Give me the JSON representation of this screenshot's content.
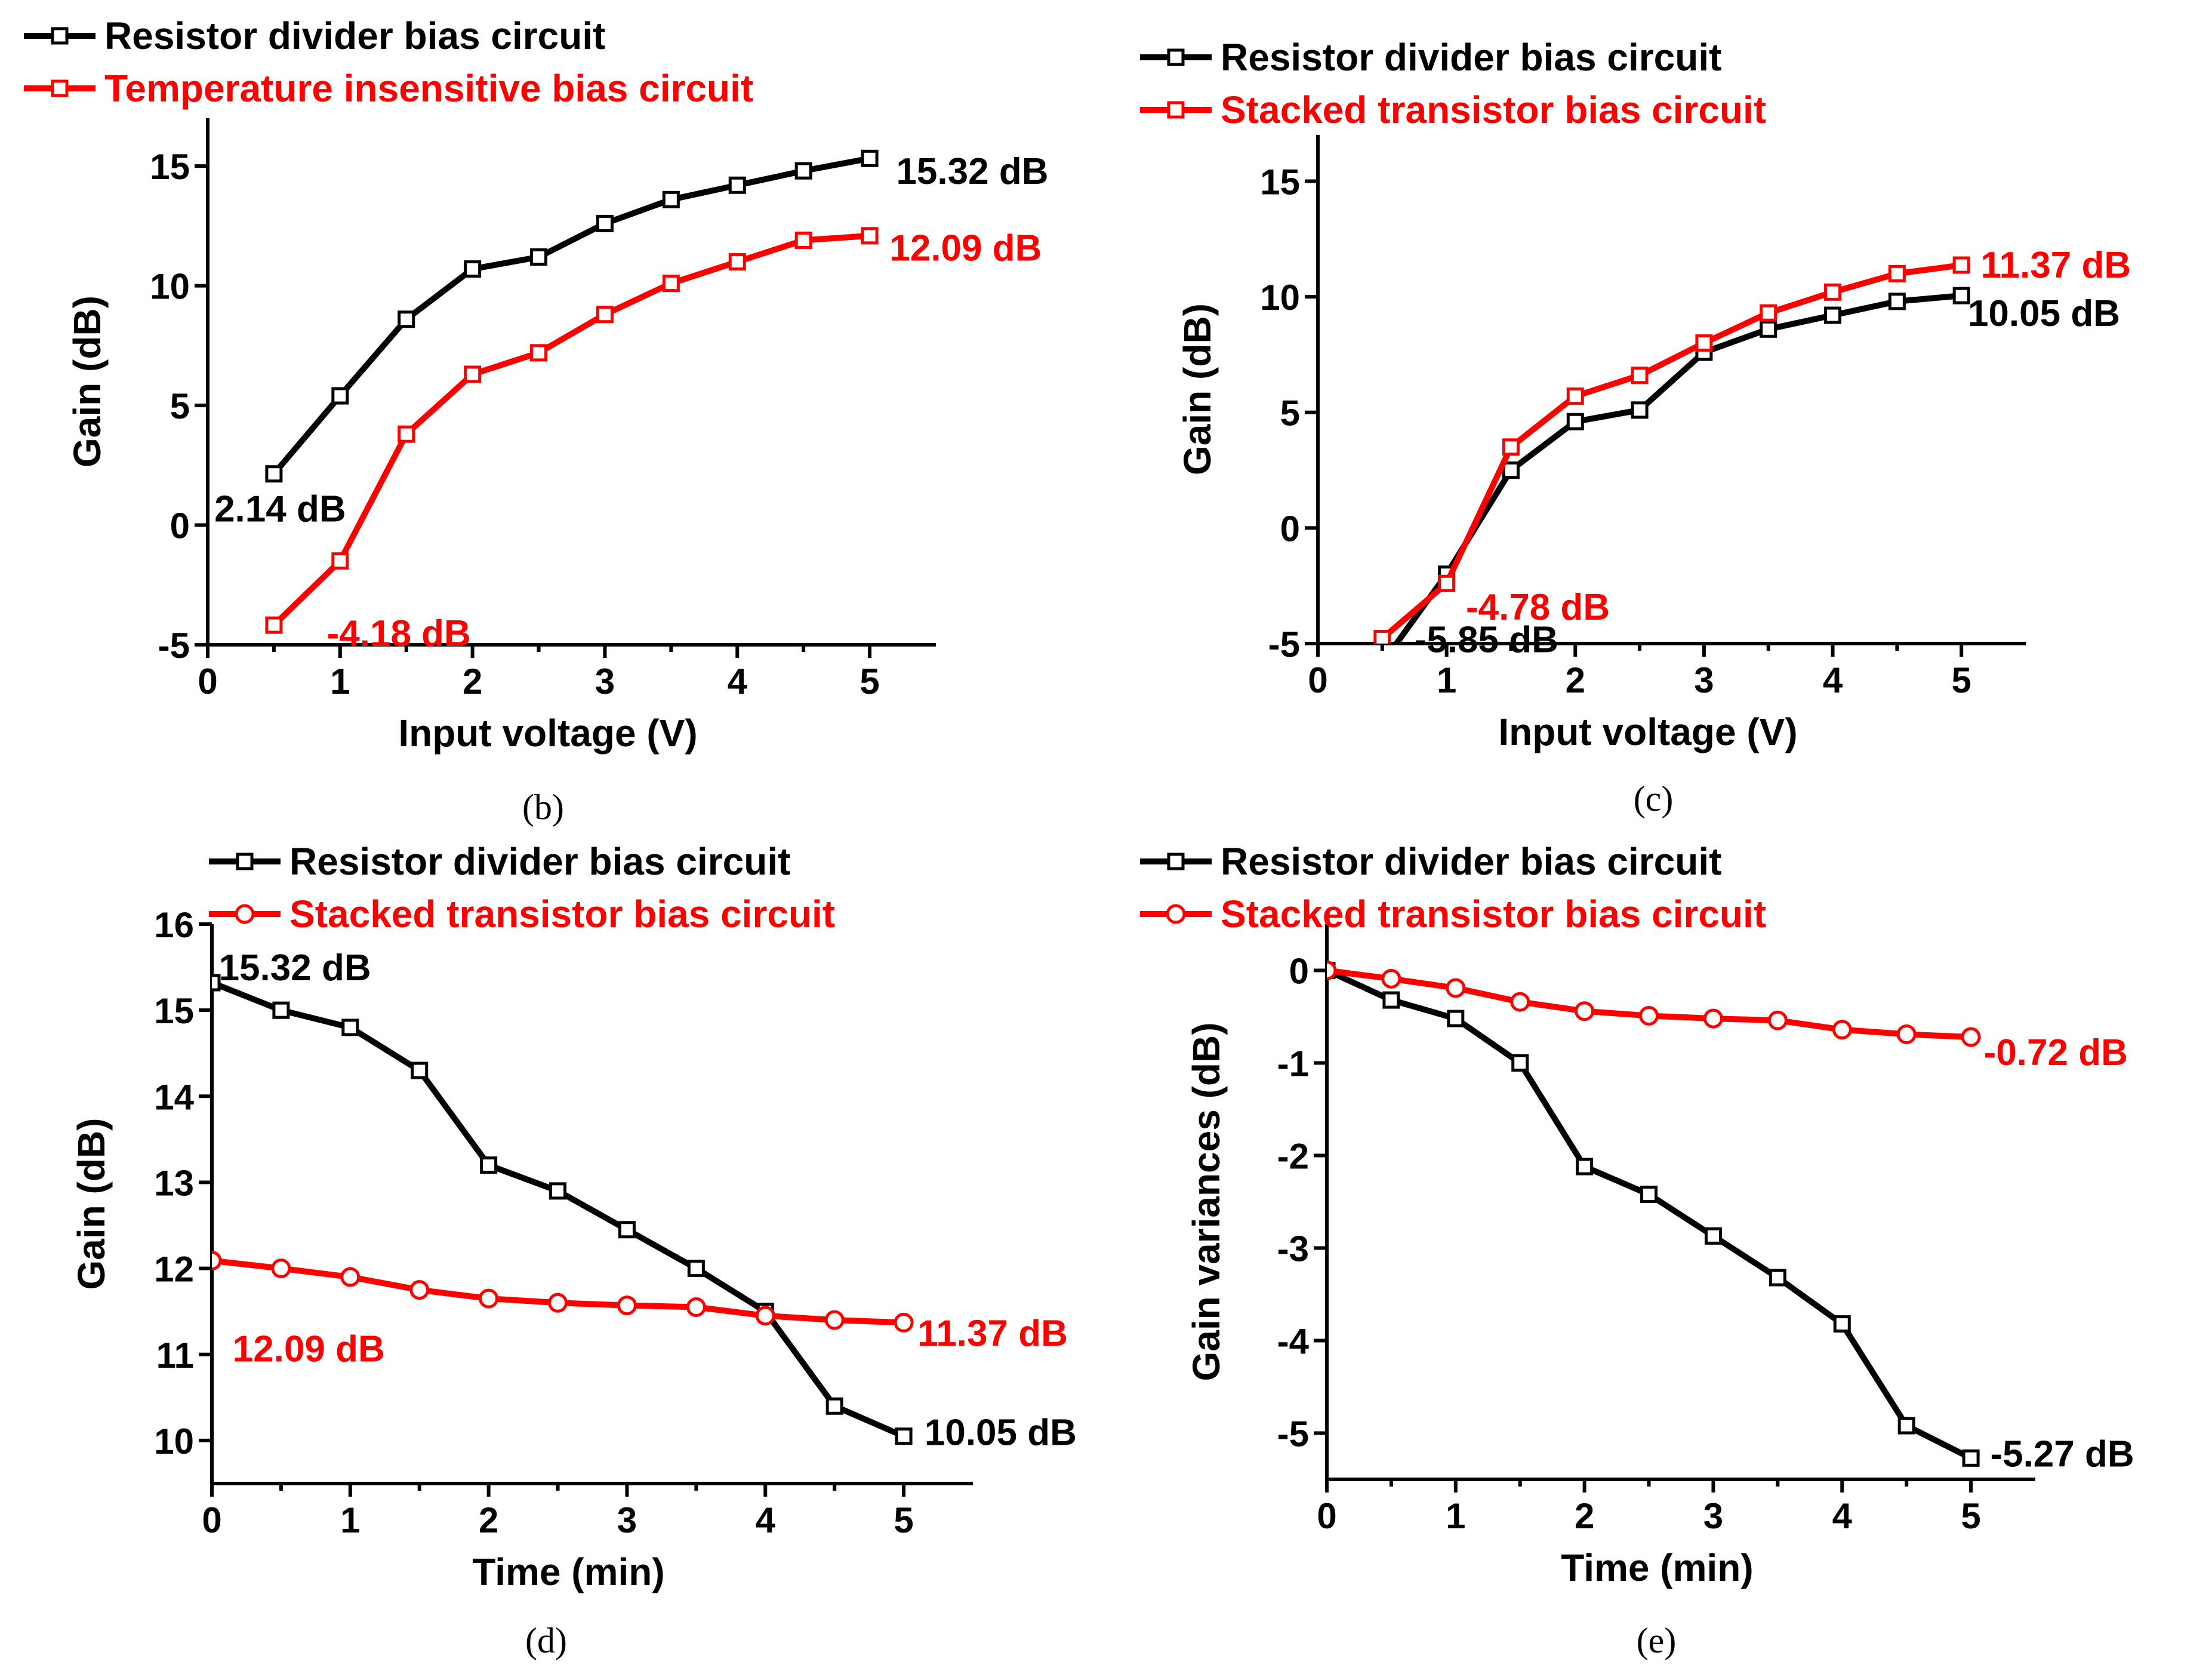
{
  "colors": {
    "black": "#000000",
    "red": "#ff0000"
  },
  "chart_data": [
    {
      "panel": "b",
      "caption": "(b)",
      "type": "line",
      "xlabel": "Input voltage (V)",
      "ylabel": "Gain (dB)",
      "xlim": [
        0,
        5.5
      ],
      "ylim": [
        -5,
        17
      ],
      "xticks": [
        0,
        1,
        2,
        3,
        4,
        5
      ],
      "yticks": [
        -5,
        0,
        5,
        10,
        15
      ],
      "legend_position": "top-left",
      "series": [
        {
          "name": "Resistor divider bias circuit",
          "color": "#000000",
          "marker": "square",
          "x": [
            0.5,
            1,
            1.5,
            2,
            2.5,
            3,
            3.5,
            4,
            4.5,
            5
          ],
          "y": [
            2.14,
            5.4,
            8.6,
            10.7,
            11.2,
            12.6,
            13.6,
            14.2,
            14.8,
            15.32
          ]
        },
        {
          "name": "Temperature insensitive bias circuit",
          "color": "#ff0000",
          "marker": "square",
          "x": [
            0.5,
            1,
            1.5,
            2,
            2.5,
            3,
            3.5,
            4,
            4.5,
            5
          ],
          "y": [
            -4.18,
            -1.5,
            3.8,
            6.3,
            7.2,
            8.8,
            10.1,
            11.0,
            11.9,
            12.09
          ]
        }
      ],
      "annotations": [
        {
          "text": "15.32 dB",
          "color": "#000000",
          "anchor_x": 5.2,
          "anchor_y": 14.8
        },
        {
          "text": "12.09 dB",
          "color": "#ff0000",
          "anchor_x": 5.15,
          "anchor_y": 11.6
        },
        {
          "text": "2.14 dB",
          "color": "#000000",
          "anchor_x": 0.05,
          "anchor_y": 0.7
        },
        {
          "text": "-4.18 dB",
          "color": "#ff0000",
          "anchor_x": 0.9,
          "anchor_y": -4.5
        }
      ]
    },
    {
      "panel": "c",
      "caption": "(c)",
      "type": "line",
      "xlabel": "Input voltage (V)",
      "ylabel": "Gain  (dB)",
      "xlim": [
        0,
        5.5
      ],
      "ylim": [
        -5,
        17
      ],
      "xticks": [
        0,
        1,
        2,
        3,
        4,
        5
      ],
      "yticks": [
        -5,
        0,
        5,
        10,
        15
      ],
      "legend_position": "top-left",
      "series": [
        {
          "name": "Resistor divider bias circuit",
          "color": "#000000",
          "marker": "square",
          "x": [
            0.5,
            1,
            1.5,
            2,
            2.5,
            3,
            3.5,
            4,
            4.5,
            5
          ],
          "y": [
            -5.85,
            -2.0,
            2.5,
            4.6,
            5.1,
            7.6,
            8.6,
            9.2,
            9.8,
            10.05
          ]
        },
        {
          "name": "Stacked transistor bias circuit",
          "color": "#ff0000",
          "marker": "square",
          "x": [
            0.5,
            1,
            1.5,
            2,
            2.5,
            3,
            3.5,
            4,
            4.5,
            5
          ],
          "y": [
            -4.78,
            -2.4,
            3.5,
            5.7,
            6.6,
            8.0,
            9.3,
            10.2,
            11.0,
            11.37
          ]
        }
      ],
      "annotations": [
        {
          "text": "11.37 dB",
          "color": "#ff0000",
          "anchor_x": 5.15,
          "anchor_y": 11.4
        },
        {
          "text": "10.05 dB",
          "color": "#000000",
          "anchor_x": 5.05,
          "anchor_y": 9.3
        },
        {
          "text": "-4.78 dB",
          "color": "#ff0000",
          "anchor_x": 1.15,
          "anchor_y": -3.4
        },
        {
          "text": "-5.85 dB",
          "color": "#000000",
          "anchor_x": 0.75,
          "anchor_y": -4.8
        }
      ]
    },
    {
      "panel": "d",
      "caption": "(d)",
      "type": "line",
      "xlabel": "Time (min)",
      "ylabel": "Gain (dB)",
      "xlim": [
        0,
        5.5
      ],
      "ylim": [
        9.5,
        16
      ],
      "xticks": [
        0,
        1,
        2,
        3,
        4,
        5
      ],
      "yticks": [
        10,
        11,
        12,
        13,
        14,
        15,
        16
      ],
      "legend_position": "top-left",
      "series": [
        {
          "name": "Resistor divider bias circuit",
          "color": "#000000",
          "marker": "square",
          "x": [
            0,
            0.5,
            1,
            1.5,
            2,
            2.5,
            3,
            3.5,
            4,
            4.5,
            5
          ],
          "y": [
            15.32,
            15.0,
            14.8,
            14.3,
            13.2,
            12.9,
            12.45,
            12.0,
            11.5,
            10.4,
            10.05
          ]
        },
        {
          "name": "Stacked transistor bias circuit",
          "color": "#ff0000",
          "marker": "circle",
          "x": [
            0,
            0.5,
            1,
            1.5,
            2,
            2.5,
            3,
            3.5,
            4,
            4.5,
            5
          ],
          "y": [
            12.09,
            12.0,
            11.9,
            11.75,
            11.65,
            11.6,
            11.57,
            11.55,
            11.45,
            11.4,
            11.37
          ]
        }
      ],
      "annotations": [
        {
          "text": "15.32 dB",
          "color": "#000000",
          "anchor_x": 0.05,
          "anchor_y": 15.5
        },
        {
          "text": "11.37 dB",
          "color": "#ff0000",
          "anchor_x": 5.1,
          "anchor_y": 11.25
        },
        {
          "text": "12.09 dB",
          "color": "#ff0000",
          "anchor_x": 0.15,
          "anchor_y": 11.07
        },
        {
          "text": "10.05 dB",
          "color": "#000000",
          "anchor_x": 5.15,
          "anchor_y": 10.1
        }
      ]
    },
    {
      "panel": "e",
      "caption": "(e)",
      "type": "line",
      "xlabel": "Time (min)",
      "ylabel": "Gain variances (dB)",
      "xlim": [
        0,
        5.5
      ],
      "ylim": [
        -5.5,
        0.5
      ],
      "xticks": [
        0,
        1,
        2,
        3,
        4,
        5
      ],
      "yticks": [
        0,
        -1,
        -2,
        -3,
        -4,
        -5
      ],
      "legend_position": "top-left",
      "series": [
        {
          "name": "Resistor divider bias circuit",
          "color": "#000000",
          "marker": "square",
          "x": [
            0,
            0.5,
            1,
            1.5,
            2,
            2.5,
            3,
            3.5,
            4,
            4.5,
            5
          ],
          "y": [
            0,
            -0.32,
            -0.52,
            -1.0,
            -2.12,
            -2.42,
            -2.87,
            -3.32,
            -3.82,
            -4.92,
            -5.27
          ]
        },
        {
          "name": "Stacked transistor bias circuit",
          "color": "#ff0000",
          "marker": "circle",
          "x": [
            0,
            0.5,
            1,
            1.5,
            2,
            2.5,
            3,
            3.5,
            4,
            4.5,
            5
          ],
          "y": [
            0,
            -0.09,
            -0.19,
            -0.34,
            -0.44,
            -0.49,
            -0.52,
            -0.54,
            -0.64,
            -0.69,
            -0.72
          ]
        }
      ],
      "annotations": [
        {
          "text": "-0.72 dB",
          "color": "#ff0000",
          "anchor_x": 5.1,
          "anchor_y": -0.88
        },
        {
          "text": "-5.27 dB",
          "color": "#000000",
          "anchor_x": 5.15,
          "anchor_y": -5.22
        }
      ]
    }
  ]
}
